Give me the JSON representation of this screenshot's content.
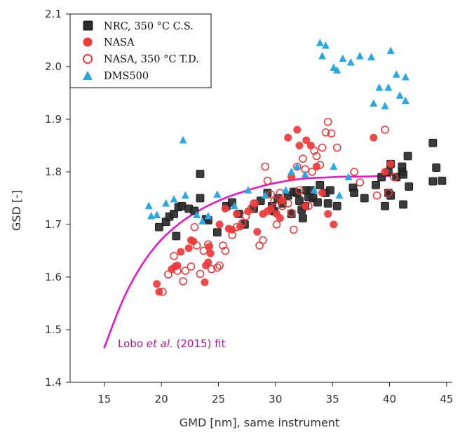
{
  "chart_data": {
    "type": "scatter",
    "xlabel": "GMD [nm], same instrument",
    "ylabel": "GSD [-]",
    "xlim": [
      12,
      45.5
    ],
    "ylim": [
      1.4,
      2.1
    ],
    "xticks": [
      15,
      20,
      25,
      30,
      35,
      40,
      45
    ],
    "yticks": [
      1.4,
      1.5,
      1.6,
      1.7,
      1.8,
      1.9,
      2.0,
      2.1
    ],
    "xtick_labels": [
      "15",
      "20",
      "25",
      "30",
      "35",
      "40",
      "45"
    ],
    "ytick_labels": [
      "1.4",
      "1.5",
      "1.6",
      "1.7",
      "1.8",
      "1.9",
      "2.0",
      "2.1"
    ],
    "grid": false,
    "legend_position": "top-left",
    "colors": {
      "nrc": "#2b2b2b",
      "nasa": "#ee3a3a",
      "dms": "#2aa8e6",
      "fit": "#ea16c8",
      "annotation": "#b0189c"
    },
    "series": [
      {
        "name": "NRC, 350 °C C.S.",
        "marker": "square-filled",
        "points": [
          [
            19.8,
            1.695
          ],
          [
            20.4,
            1.705
          ],
          [
            20.7,
            1.715
          ],
          [
            21.1,
            1.72
          ],
          [
            21.3,
            1.678
          ],
          [
            21.5,
            1.733
          ],
          [
            21.8,
            1.735
          ],
          [
            22.4,
            1.73
          ],
          [
            22.9,
            1.726
          ],
          [
            23.4,
            1.796
          ],
          [
            23.4,
            1.75
          ],
          [
            23.9,
            1.71
          ],
          [
            24.1,
            1.708
          ],
          [
            24.9,
            1.685
          ],
          [
            25.7,
            1.735
          ],
          [
            26.2,
            1.742
          ],
          [
            26.8,
            1.72
          ],
          [
            27.3,
            1.7
          ],
          [
            28.1,
            1.73
          ],
          [
            28.7,
            1.745
          ],
          [
            29.3,
            1.76
          ],
          [
            29.7,
            1.735
          ],
          [
            29.9,
            1.725
          ],
          [
            30.2,
            1.75
          ],
          [
            30.6,
            1.74
          ],
          [
            31.1,
            1.755
          ],
          [
            31.4,
            1.72
          ],
          [
            31.6,
            1.762
          ],
          [
            31.9,
            1.76
          ],
          [
            32.1,
            1.745
          ],
          [
            32.3,
            1.728
          ],
          [
            32.4,
            1.712
          ],
          [
            32.6,
            1.735
          ],
          [
            32.7,
            1.765
          ],
          [
            32.9,
            1.752
          ],
          [
            33.1,
            1.765
          ],
          [
            33.3,
            1.75
          ],
          [
            33.7,
            1.742
          ],
          [
            33.9,
            1.775
          ],
          [
            34.4,
            1.76
          ],
          [
            34.6,
            1.74
          ],
          [
            34.8,
            1.765
          ],
          [
            35.4,
            1.735
          ],
          [
            36.8,
            1.77
          ],
          [
            36.9,
            1.76
          ],
          [
            37.8,
            1.75
          ],
          [
            38.8,
            1.775
          ],
          [
            39.3,
            1.79
          ],
          [
            39.6,
            1.735
          ],
          [
            39.9,
            1.8
          ],
          [
            39.9,
            1.76
          ],
          [
            40.1,
            1.815
          ],
          [
            40.1,
            1.755
          ],
          [
            40.6,
            1.79
          ],
          [
            41.1,
            1.81
          ],
          [
            41.1,
            1.8
          ],
          [
            41.2,
            1.795
          ],
          [
            41.2,
            1.738
          ],
          [
            41.6,
            1.83
          ],
          [
            41.7,
            1.772
          ],
          [
            43.8,
            1.855
          ],
          [
            43.8,
            1.782
          ],
          [
            44.1,
            1.808
          ],
          [
            44.6,
            1.783
          ]
        ]
      },
      {
        "name": "NASA",
        "marker": "circle-filled",
        "points": [
          [
            19.6,
            1.587
          ],
          [
            19.8,
            1.572
          ],
          [
            20.9,
            1.615
          ],
          [
            21.2,
            1.62
          ],
          [
            21.4,
            1.622
          ],
          [
            21.7,
            1.648
          ],
          [
            22.4,
            1.655
          ],
          [
            22.6,
            1.67
          ],
          [
            22.8,
            1.668
          ],
          [
            23.8,
            1.59
          ],
          [
            23.9,
            1.622
          ],
          [
            24.1,
            1.628
          ],
          [
            24.2,
            1.658
          ],
          [
            24.3,
            1.645
          ],
          [
            25.1,
            1.7
          ],
          [
            25.6,
            1.73
          ],
          [
            25.9,
            1.692
          ],
          [
            26.2,
            1.69
          ],
          [
            26.6,
            1.72
          ],
          [
            26.9,
            1.696
          ],
          [
            27.6,
            1.725
          ],
          [
            28.2,
            1.74
          ],
          [
            28.4,
            1.686
          ],
          [
            28.9,
            1.72
          ],
          [
            29.3,
            1.725
          ],
          [
            29.6,
            1.73
          ],
          [
            30.1,
            1.72
          ],
          [
            30.4,
            1.712
          ],
          [
            30.6,
            1.746
          ],
          [
            31.1,
            1.865
          ],
          [
            31.4,
            1.79
          ],
          [
            31.9,
            1.88
          ],
          [
            32.1,
            1.85
          ],
          [
            32.6,
            1.735
          ],
          [
            32.7,
            1.86
          ],
          [
            33.1,
            1.85
          ],
          [
            33.6,
            1.81
          ],
          [
            34.1,
            1.76
          ],
          [
            34.6,
            1.72
          ],
          [
            35.1,
            1.7
          ],
          [
            38.6,
            1.865
          ],
          [
            39.6,
            1.8
          ],
          [
            40.1,
            1.815
          ]
        ]
      },
      {
        "name": "NASA, 350 °C T.D.",
        "marker": "circle-open",
        "points": [
          [
            20.1,
            1.572
          ],
          [
            20.6,
            1.605
          ],
          [
            21.1,
            1.64
          ],
          [
            21.4,
            1.612
          ],
          [
            21.9,
            1.592
          ],
          [
            22.1,
            1.612
          ],
          [
            22.6,
            1.62
          ],
          [
            22.9,
            1.695
          ],
          [
            23.1,
            1.66
          ],
          [
            23.4,
            1.606
          ],
          [
            23.7,
            1.65
          ],
          [
            24.1,
            1.662
          ],
          [
            24.4,
            1.615
          ],
          [
            24.9,
            1.618
          ],
          [
            25.1,
            1.622
          ],
          [
            25.4,
            1.66
          ],
          [
            25.6,
            1.65
          ],
          [
            26.2,
            1.68
          ],
          [
            26.6,
            1.695
          ],
          [
            27.1,
            1.703
          ],
          [
            27.4,
            1.716
          ],
          [
            27.9,
            1.731
          ],
          [
            28.1,
            1.74
          ],
          [
            28.6,
            1.66
          ],
          [
            28.9,
            1.67
          ],
          [
            29.1,
            1.81
          ],
          [
            29.3,
            1.783
          ],
          [
            29.6,
            1.757
          ],
          [
            29.9,
            1.745
          ],
          [
            30.1,
            1.7
          ],
          [
            30.4,
            1.76
          ],
          [
            30.6,
            1.735
          ],
          [
            31.1,
            1.74
          ],
          [
            31.4,
            1.722
          ],
          [
            31.6,
            1.69
          ],
          [
            31.9,
            1.81
          ],
          [
            32.1,
            1.765
          ],
          [
            32.4,
            1.825
          ],
          [
            32.6,
            1.805
          ],
          [
            32.9,
            1.735
          ],
          [
            33.2,
            1.8
          ],
          [
            33.4,
            1.84
          ],
          [
            33.6,
            1.83
          ],
          [
            33.9,
            1.813
          ],
          [
            34.1,
            1.846
          ],
          [
            34.4,
            1.875
          ],
          [
            34.6,
            1.895
          ],
          [
            34.9,
            1.873
          ],
          [
            35.4,
            1.846
          ],
          [
            36.9,
            1.8
          ],
          [
            37.4,
            1.78
          ],
          [
            38.9,
            1.755
          ],
          [
            39.6,
            1.88
          ],
          [
            39.9,
            1.76
          ],
          [
            40.4,
            1.79
          ]
        ]
      },
      {
        "name": "DMS500",
        "marker": "triangle-filled",
        "points": [
          [
            18.9,
            1.735
          ],
          [
            19.1,
            1.716
          ],
          [
            19.6,
            1.718
          ],
          [
            20.4,
            1.74
          ],
          [
            21.1,
            1.748
          ],
          [
            21.9,
            1.86
          ],
          [
            22.1,
            1.755
          ],
          [
            23.1,
            1.718
          ],
          [
            23.6,
            1.706
          ],
          [
            24.1,
            1.716
          ],
          [
            24.9,
            1.757
          ],
          [
            26.4,
            1.735
          ],
          [
            27.6,
            1.765
          ],
          [
            29.1,
            1.755
          ],
          [
            30.9,
            1.765
          ],
          [
            31.4,
            1.8
          ],
          [
            31.9,
            1.81
          ],
          [
            32.6,
            1.795
          ],
          [
            33.4,
            1.765
          ],
          [
            33.9,
            2.045
          ],
          [
            34.1,
            2.02
          ],
          [
            34.4,
            2.04
          ],
          [
            35.1,
            1.998
          ],
          [
            35.4,
            1.993
          ],
          [
            35.6,
            1.755
          ],
          [
            35.9,
            2.015
          ],
          [
            36.6,
            2.008
          ],
          [
            37.4,
            2.02
          ],
          [
            38.4,
            2.018
          ],
          [
            39.1,
            1.96
          ],
          [
            39.6,
            1.925
          ],
          [
            40.1,
            2.03
          ],
          [
            40.6,
            1.985
          ],
          [
            40.9,
            1.945
          ],
          [
            41.4,
            1.935
          ],
          [
            41.4,
            1.98
          ],
          [
            35.1,
            1.81
          ],
          [
            36.4,
            1.79
          ],
          [
            38.6,
            1.93
          ],
          [
            39.9,
            1.96
          ]
        ]
      }
    ],
    "fit": {
      "name": "Lobo et al. (2015) fit",
      "points": [
        [
          15,
          1.466
        ],
        [
          16,
          1.525
        ],
        [
          17,
          1.575
        ],
        [
          18,
          1.614
        ],
        [
          19,
          1.646
        ],
        [
          20,
          1.672
        ],
        [
          21,
          1.692
        ],
        [
          22,
          1.709
        ],
        [
          23,
          1.723
        ],
        [
          24,
          1.735
        ],
        [
          25,
          1.745
        ],
        [
          26,
          1.754
        ],
        [
          27,
          1.761
        ],
        [
          28,
          1.768
        ],
        [
          29,
          1.774
        ],
        [
          30,
          1.779
        ],
        [
          31,
          1.783
        ],
        [
          32,
          1.786
        ],
        [
          33,
          1.788
        ],
        [
          34,
          1.789
        ],
        [
          35,
          1.79
        ],
        [
          36,
          1.791
        ],
        [
          37,
          1.791
        ],
        [
          38,
          1.791
        ],
        [
          39,
          1.792
        ],
        [
          40,
          1.792
        ]
      ]
    },
    "annotation": {
      "prefix": "Lobo ",
      "italic": "et al.",
      "suffix": " (2015) fit"
    }
  }
}
